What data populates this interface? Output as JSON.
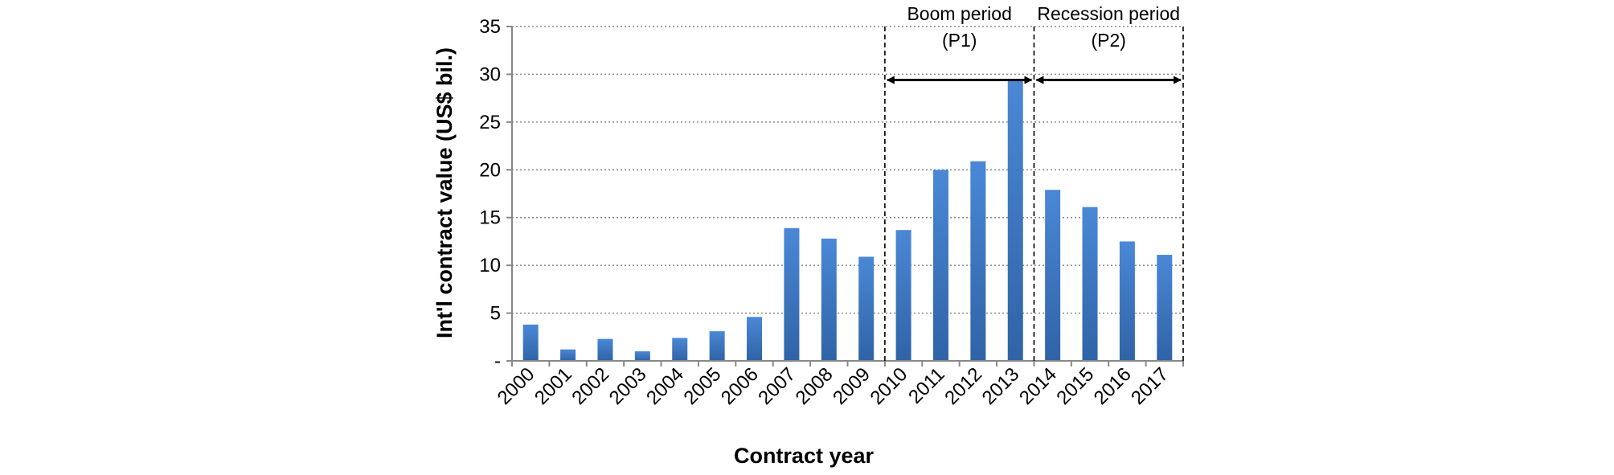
{
  "chart_data": {
    "type": "bar",
    "title": "",
    "xlabel": "Contract year",
    "ylabel": "Int'l contract value (US$ bil.)",
    "ylim": [
      0,
      35
    ],
    "yticks": [
      0,
      5,
      10,
      15,
      20,
      25,
      30,
      35
    ],
    "ytick_labels": [
      "-",
      "5",
      "10",
      "15",
      "20",
      "25",
      "30",
      "35"
    ],
    "grid": "horizontal dotted",
    "legend": "none",
    "bar_color": "#3a78c5",
    "categories": [
      "2000",
      "2001",
      "2002",
      "2003",
      "2004",
      "2005",
      "2006",
      "2007",
      "2008",
      "2009",
      "2010",
      "2011",
      "2012",
      "2013",
      "2014",
      "2015",
      "2016",
      "2017"
    ],
    "values": [
      3.8,
      1.2,
      2.3,
      1.0,
      2.4,
      3.1,
      4.6,
      13.9,
      12.8,
      10.9,
      13.7,
      20.0,
      20.9,
      29.3,
      17.9,
      16.1,
      12.5,
      11.1
    ],
    "annotations": [
      {
        "start": "2009",
        "end": "2013",
        "line1": "Boom period",
        "line2": "(P1)"
      },
      {
        "start": "2013",
        "end": "2017",
        "line1": "Recession period",
        "line2": "(P2)"
      }
    ]
  }
}
